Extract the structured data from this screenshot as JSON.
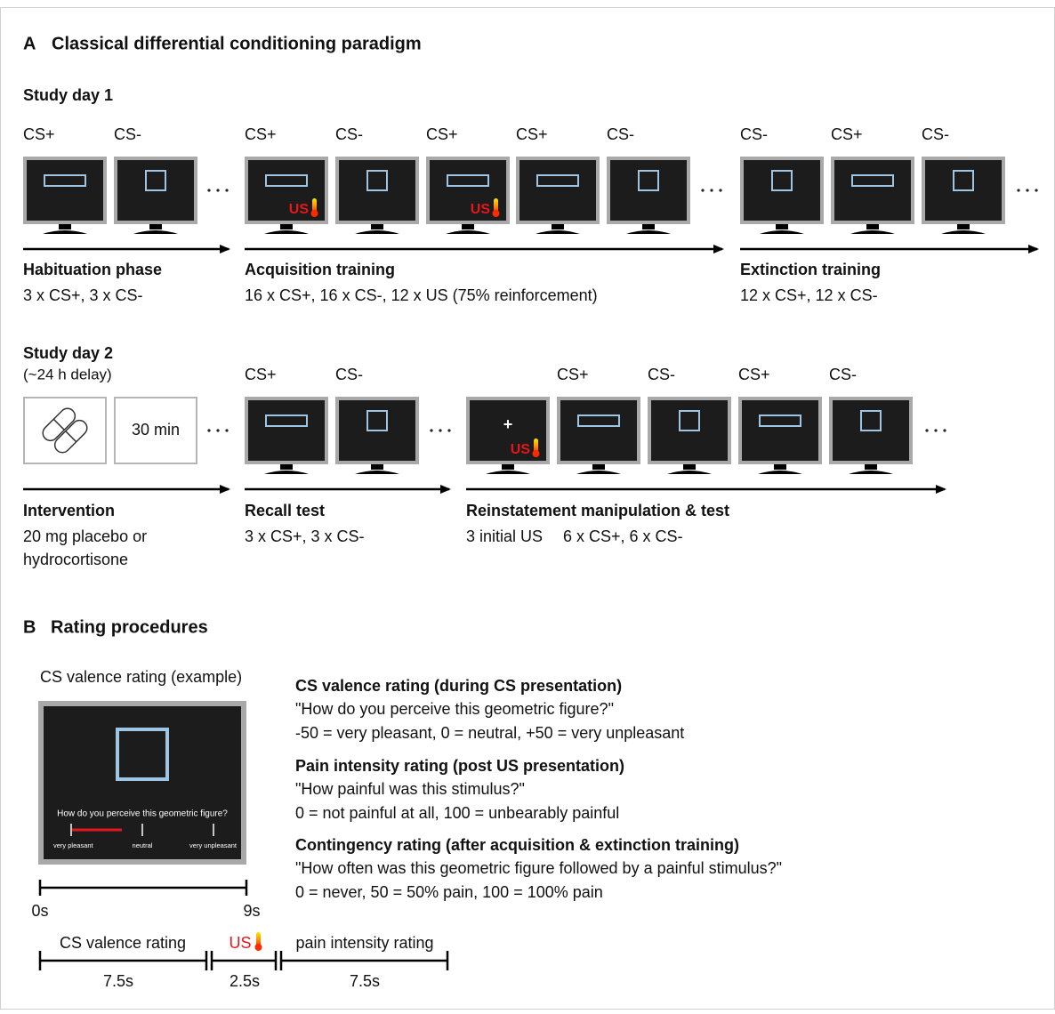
{
  "panel_a": {
    "label": "A",
    "title": "Classical differential conditioning paradigm"
  },
  "day1": {
    "title": "Study day 1",
    "phases": [
      {
        "name": "Habituation phase",
        "details": [
          "3 x CS+, 3 x CS-"
        ],
        "screens": [
          {
            "label": "CS+",
            "shape": "bar"
          },
          {
            "label": "CS-",
            "shape": "square"
          }
        ]
      },
      {
        "name": "Acquisition training",
        "details": [
          "16 x CS+, 16 x CS-, 12 x US (75% reinforcement)"
        ],
        "screens": [
          {
            "label": "CS+",
            "shape": "bar",
            "us": "US"
          },
          {
            "label": "CS-",
            "shape": "square"
          },
          {
            "label": "CS+",
            "shape": "bar",
            "us": "US"
          },
          {
            "label": "CS+",
            "shape": "bar"
          },
          {
            "label": "CS-",
            "shape": "square"
          }
        ]
      },
      {
        "name": "Extinction training",
        "details": [
          "12 x CS+, 12 x CS-"
        ],
        "screens": [
          {
            "label": "CS-",
            "shape": "square"
          },
          {
            "label": "CS+",
            "shape": "bar"
          },
          {
            "label": "CS-",
            "shape": "square"
          }
        ]
      }
    ]
  },
  "day2": {
    "title": "Study day 2",
    "subtitle": "(~24 h delay)",
    "phases": [
      {
        "name": "Intervention",
        "details": [
          "20 mg placebo or",
          "hydrocortisone"
        ],
        "screens": [
          {
            "shape": "pill"
          },
          {
            "shape": "box",
            "text": "30 min"
          }
        ]
      },
      {
        "name": "Recall test",
        "details": [
          "3 x CS+, 3 x CS-"
        ],
        "screens": [
          {
            "label": "CS+",
            "shape": "bar"
          },
          {
            "label": "CS-",
            "shape": "square"
          }
        ]
      },
      {
        "name": "Reinstatement manipulation & test",
        "details": [
          "3 initial US",
          "6 x CS+, 6 x CS-"
        ],
        "screens": [
          {
            "shape": "cross",
            "text": "+",
            "us": "US"
          },
          {
            "label": "CS+",
            "shape": "bar"
          },
          {
            "label": "CS-",
            "shape": "square"
          },
          {
            "label": "CS+",
            "shape": "bar"
          },
          {
            "label": "CS-",
            "shape": "square"
          }
        ]
      }
    ]
  },
  "panel_b": {
    "label": "B",
    "title": "Rating procedures",
    "example": {
      "caption": "CS valence rating (example)",
      "question": "How do you perceive this geometric figure?",
      "anchors": [
        "very pleasant",
        "neutral",
        "very unpleasant"
      ],
      "time_start": "0s",
      "time_end": "9s"
    },
    "timeline": {
      "segments": [
        {
          "label": "CS valence rating",
          "duration": "7.5s"
        },
        {
          "label": "US",
          "duration": "2.5s"
        },
        {
          "label": "pain intensity rating",
          "duration": "7.5s"
        }
      ]
    },
    "ratings": [
      {
        "heading": "CS valence rating (during CS presentation)",
        "question": "\"How do you perceive this geometric figure?\"",
        "scale": "-50 = very pleasant, 0 = neutral, +50 = very unpleasant"
      },
      {
        "heading": "Pain intensity rating (post US presentation)",
        "question": "\"How painful was this stimulus?\"",
        "scale": "0 = not painful at all, 100 = unbearably painful"
      },
      {
        "heading": "Contingency rating (after acquisition & extinction training)",
        "question": "\"How often was this geometric figure followed by a painful stimulus?\"",
        "scale": "0 = never, 50 = 50% pain, 100 = 100% pain"
      }
    ]
  }
}
